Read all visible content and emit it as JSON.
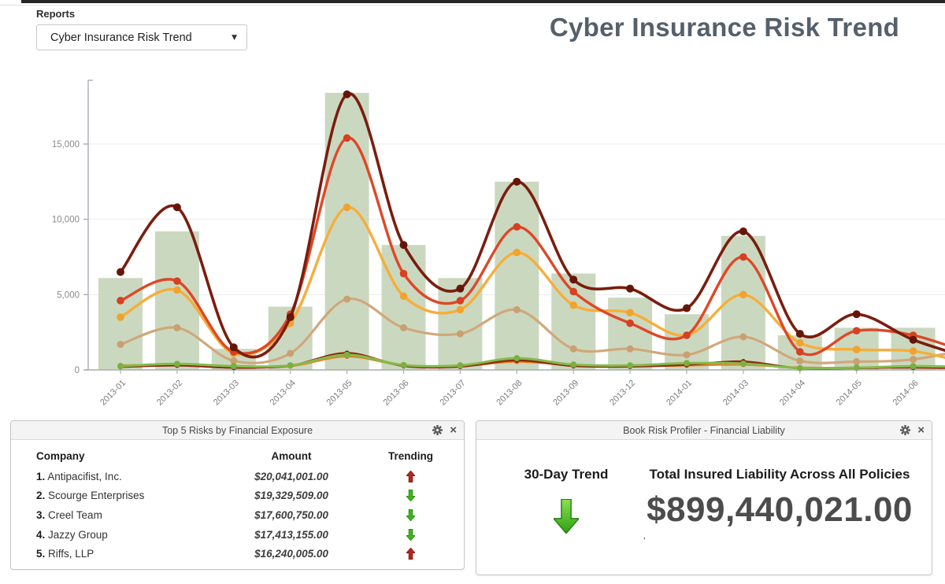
{
  "header": {
    "reports_label": "Reports",
    "selected_report": "Cyber Insurance Risk Trend",
    "title": "Cyber Insurance Risk Trend"
  },
  "colors": {
    "trend_up": "#b3271e",
    "trend_down": "#3fb31d",
    "bar_fill": "#cbd8c0",
    "title_text": "#55606b"
  },
  "chart_data": {
    "type": "bar+line combo",
    "title": "",
    "xlabel": "",
    "ylabel": "",
    "legend": "none",
    "grid": "horizontal",
    "categories": [
      "2013-01",
      "2013-02",
      "2013-03",
      "2013-04",
      "2013-05",
      "2013-06",
      "2013-07",
      "2013-08",
      "2013-09",
      "2013-12",
      "2014-01",
      "2014-03",
      "2014-04",
      "2014-05",
      "2014-06"
    ],
    "y_ticks": [
      0,
      5000,
      10000,
      15000
    ],
    "y_tick_labels": [
      "0",
      "5,000",
      "10,000",
      "15,000"
    ],
    "ylim": [
      0,
      19800
    ],
    "bars": {
      "name": "monthly-total-bars",
      "color": "#cbd8c0",
      "values": [
        6100,
        9200,
        1400,
        4200,
        18400,
        8300,
        6100,
        12500,
        6400,
        4800,
        3700,
        8900,
        2300,
        2800,
        2800
      ]
    },
    "series": [
      {
        "name": "tan-line",
        "color": "#d0a87b",
        "dot_color": "#c9a071",
        "width": 3.2,
        "dot": 4.5,
        "values": [
          1700,
          2800,
          600,
          1100,
          4700,
          2800,
          2400,
          4000,
          1400,
          1400,
          1000,
          2200,
          600,
          550,
          700
        ],
        "edge": 1400
      },
      {
        "name": "orange-small-line",
        "color": "#ef7b1d",
        "dot_color": "#e26f15",
        "width": 2.6,
        "dot": 3.2,
        "values": [
          300,
          350,
          200,
          250,
          900,
          300,
          250,
          550,
          300,
          250,
          300,
          350,
          150,
          150,
          200
        ],
        "edge": 150
      },
      {
        "name": "dark-red-small-line",
        "color": "#8d2a10",
        "dot_color": "#7c230c",
        "width": 2.6,
        "dot": 3.2,
        "values": [
          200,
          300,
          150,
          280,
          1120,
          260,
          220,
          640,
          260,
          220,
          340,
          560,
          100,
          120,
          160
        ],
        "edge": 100
      },
      {
        "name": "green-small-line",
        "color": "#85bb4c",
        "dot_color": "#79b040",
        "width": 3,
        "dot": 4,
        "values": [
          250,
          400,
          250,
          300,
          1000,
          320,
          300,
          780,
          350,
          300,
          450,
          420,
          120,
          150,
          250
        ],
        "edge": 200
      },
      {
        "name": "amber-line",
        "color": "#f6ae3a",
        "dot_color": "#f0a42e",
        "width": 3.4,
        "dot": 4.8,
        "values": [
          3500,
          5300,
          1100,
          3100,
          10800,
          4900,
          4000,
          7800,
          4300,
          3800,
          2300,
          5000,
          1800,
          1350,
          1250
        ],
        "edge": 400
      },
      {
        "name": "red-orange-line",
        "color": "#dd4827",
        "dot_color": "#d64023",
        "width": 3.4,
        "dot": 4.8,
        "values": [
          4600,
          5900,
          1200,
          3700,
          15400,
          6400,
          4600,
          9500,
          5200,
          3100,
          2300,
          7500,
          1200,
          2600,
          2300
        ],
        "edge": 1100
      },
      {
        "name": "dark-red-line",
        "color": "#7a1d0e",
        "dot_color": "#641608",
        "width": 3.6,
        "dot": 5,
        "values": [
          6500,
          10800,
          1500,
          3500,
          18300,
          8300,
          5400,
          12500,
          6000,
          5400,
          4100,
          9200,
          2400,
          3700,
          2000
        ],
        "edge": 800
      }
    ]
  },
  "top5_panel": {
    "title": "Top 5 Risks by Financial Exposure",
    "columns": [
      "Company",
      "Amount",
      "Trending"
    ],
    "rows": [
      {
        "rank": "1.",
        "company": "Antipacifist, Inc.",
        "amount": "$20,041,001.00",
        "trend": "up"
      },
      {
        "rank": "2.",
        "company": "Scourge Enterprises",
        "amount": "$19,329,509.00",
        "trend": "down"
      },
      {
        "rank": "3.",
        "company": "Creel Team",
        "amount": "$17,600,750.00",
        "trend": "down"
      },
      {
        "rank": "4.",
        "company": "Jazzy Group",
        "amount": "$17,413,155.00",
        "trend": "down"
      },
      {
        "rank": "5.",
        "company": "Riffs, LLP",
        "amount": "$16,240,005.00",
        "trend": "up"
      }
    ]
  },
  "book_panel": {
    "title": "Book Risk Profiler - Financial Liability",
    "trend_label": "30-Day Trend",
    "trend_direction": "down",
    "total_label": "Total Insured Liability Across All Policies",
    "total_amount": "$899,440,021.00",
    "stray_mark": "'"
  }
}
